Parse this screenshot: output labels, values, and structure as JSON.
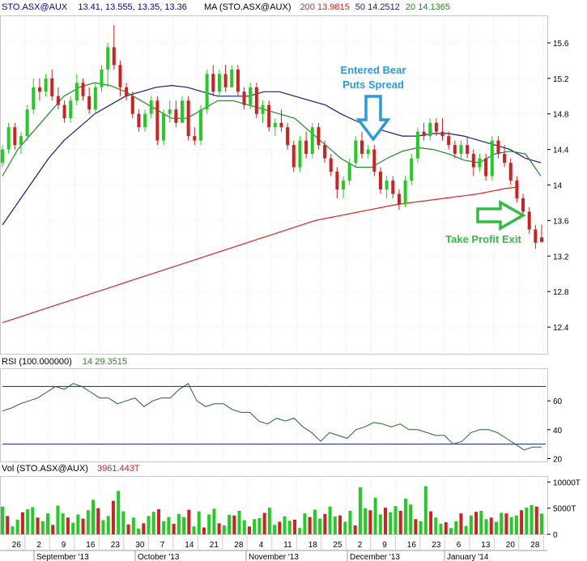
{
  "header": {
    "symbol": "STO.ASX@AUX",
    "ohlc": "13.41, 13.555, 13.35, 13.36",
    "ma_label": "MA (STO.ASX@AUX)",
    "ma200": "200 13.9815",
    "ma50": "50 14.2512",
    "ma20": "20 14.1365",
    "rsi_label": "RSI (100.000000)",
    "rsi_value": "14 29.3515",
    "vol_label": "Vol (STO.ASX@AUX)",
    "vol_value": "3961.443T"
  },
  "annotations": {
    "entry_line1": "Entered Bear",
    "entry_line2": "Puts Spread",
    "exit": "Take Profit Exit"
  },
  "colors": {
    "up": "#22cc22",
    "down": "#cc2222",
    "ma200": "#dd2222",
    "ma50": "#1a1a88",
    "ma20": "#228822",
    "annotation_blue": "#2a9bd8",
    "annotation_green": "#33bb44",
    "rsi_line": "#226622"
  },
  "chart_data": {
    "type": "candlestick",
    "price_axis": {
      "ticks": [
        15.6,
        15.2,
        14.8,
        14.4,
        14,
        13.6,
        13.2,
        12.8,
        12.4
      ],
      "ylim": [
        12.1,
        15.9
      ]
    },
    "rsi_axis": {
      "ticks": [
        60,
        40,
        20
      ],
      "overbought": 70,
      "oversold": 30,
      "ylim": [
        18,
        82
      ]
    },
    "volume_axis": {
      "ticks": [
        "10000T",
        "5000T",
        "0"
      ],
      "max": 11000
    },
    "x_ticks": [
      "26",
      "2",
      "9",
      "16",
      "23",
      "30",
      "7",
      "14",
      "21",
      "28",
      "4",
      "11",
      "18",
      "25",
      "2",
      "9",
      "16",
      "23",
      "6",
      "13",
      "20",
      "28"
    ],
    "months": [
      "September '13",
      "October '13",
      "November '13",
      "December '13",
      "January '14"
    ],
    "candles": [
      {
        "o": 14.25,
        "h": 14.45,
        "l": 14.2,
        "c": 14.4
      },
      {
        "o": 14.4,
        "h": 14.7,
        "l": 14.35,
        "c": 14.65
      },
      {
        "o": 14.65,
        "h": 14.7,
        "l": 14.4,
        "c": 14.45
      },
      {
        "o": 14.45,
        "h": 14.6,
        "l": 14.35,
        "c": 14.55
      },
      {
        "o": 14.55,
        "h": 14.9,
        "l": 14.5,
        "c": 14.85
      },
      {
        "o": 14.85,
        "h": 15.2,
        "l": 14.8,
        "c": 15.1
      },
      {
        "o": 15.1,
        "h": 15.2,
        "l": 14.95,
        "c": 15.05
      },
      {
        "o": 15.05,
        "h": 15.25,
        "l": 15.0,
        "c": 15.2
      },
      {
        "o": 15.2,
        "h": 15.3,
        "l": 14.95,
        "c": 15.0
      },
      {
        "o": 15.0,
        "h": 15.1,
        "l": 14.85,
        "c": 14.9
      },
      {
        "o": 14.9,
        "h": 14.95,
        "l": 14.7,
        "c": 14.75
      },
      {
        "o": 14.75,
        "h": 15.0,
        "l": 14.7,
        "c": 14.95
      },
      {
        "o": 14.95,
        "h": 15.25,
        "l": 14.9,
        "c": 15.15
      },
      {
        "o": 15.15,
        "h": 15.2,
        "l": 14.95,
        "c": 15.0
      },
      {
        "o": 15.0,
        "h": 15.1,
        "l": 14.8,
        "c": 14.85
      },
      {
        "o": 14.85,
        "h": 15.15,
        "l": 14.8,
        "c": 15.1
      },
      {
        "o": 15.1,
        "h": 15.35,
        "l": 15.05,
        "c": 15.3
      },
      {
        "o": 15.3,
        "h": 15.6,
        "l": 15.1,
        "c": 15.55
      },
      {
        "o": 15.55,
        "h": 15.8,
        "l": 15.3,
        "c": 15.35
      },
      {
        "o": 15.35,
        "h": 15.4,
        "l": 15.0,
        "c": 15.1
      },
      {
        "o": 15.1,
        "h": 15.15,
        "l": 14.95,
        "c": 15.0
      },
      {
        "o": 15.0,
        "h": 15.05,
        "l": 14.75,
        "c": 14.8
      },
      {
        "o": 14.8,
        "h": 14.85,
        "l": 14.6,
        "c": 14.65
      },
      {
        "o": 14.65,
        "h": 14.85,
        "l": 14.6,
        "c": 14.8
      },
      {
        "o": 14.8,
        "h": 15.0,
        "l": 14.75,
        "c": 14.95
      },
      {
        "o": 14.95,
        "h": 15.0,
        "l": 14.45,
        "c": 14.5
      },
      {
        "o": 14.5,
        "h": 14.85,
        "l": 14.45,
        "c": 14.8
      },
      {
        "o": 14.8,
        "h": 14.95,
        "l": 14.7,
        "c": 14.85
      },
      {
        "o": 14.85,
        "h": 14.95,
        "l": 14.65,
        "c": 14.7
      },
      {
        "o": 14.7,
        "h": 15.0,
        "l": 14.7,
        "c": 14.95
      },
      {
        "o": 14.95,
        "h": 15.0,
        "l": 14.5,
        "c": 14.55
      },
      {
        "o": 14.55,
        "h": 14.65,
        "l": 14.45,
        "c": 14.5
      },
      {
        "o": 14.5,
        "h": 14.9,
        "l": 14.45,
        "c": 14.85
      },
      {
        "o": 14.85,
        "h": 15.3,
        "l": 14.8,
        "c": 15.25
      },
      {
        "o": 15.25,
        "h": 15.35,
        "l": 15.0,
        "c": 15.05
      },
      {
        "o": 15.05,
        "h": 15.3,
        "l": 15.0,
        "c": 15.25
      },
      {
        "o": 15.25,
        "h": 15.35,
        "l": 15.05,
        "c": 15.1
      },
      {
        "o": 15.1,
        "h": 15.35,
        "l": 15.1,
        "c": 15.3
      },
      {
        "o": 15.3,
        "h": 15.35,
        "l": 15.0,
        "c": 15.05
      },
      {
        "o": 15.05,
        "h": 15.1,
        "l": 14.85,
        "c": 14.9
      },
      {
        "o": 14.9,
        "h": 15.15,
        "l": 14.85,
        "c": 15.1
      },
      {
        "o": 15.1,
        "h": 15.15,
        "l": 14.75,
        "c": 14.8
      },
      {
        "o": 14.8,
        "h": 14.95,
        "l": 14.7,
        "c": 14.9
      },
      {
        "o": 14.9,
        "h": 14.95,
        "l": 14.6,
        "c": 14.65
      },
      {
        "o": 14.65,
        "h": 14.75,
        "l": 14.55,
        "c": 14.7
      },
      {
        "o": 14.7,
        "h": 14.85,
        "l": 14.6,
        "c": 14.65
      },
      {
        "o": 14.65,
        "h": 14.7,
        "l": 14.4,
        "c": 14.45
      },
      {
        "o": 14.45,
        "h": 14.5,
        "l": 14.15,
        "c": 14.2
      },
      {
        "o": 14.2,
        "h": 14.55,
        "l": 14.15,
        "c": 14.5
      },
      {
        "o": 14.5,
        "h": 14.6,
        "l": 14.3,
        "c": 14.35
      },
      {
        "o": 14.35,
        "h": 14.7,
        "l": 14.3,
        "c": 14.65
      },
      {
        "o": 14.65,
        "h": 14.7,
        "l": 14.4,
        "c": 14.45
      },
      {
        "o": 14.45,
        "h": 14.5,
        "l": 14.25,
        "c": 14.3
      },
      {
        "o": 14.3,
        "h": 14.35,
        "l": 14.1,
        "c": 14.15
      },
      {
        "o": 14.15,
        "h": 14.2,
        "l": 13.85,
        "c": 13.95
      },
      {
        "o": 13.95,
        "h": 14.1,
        "l": 13.85,
        "c": 14.05
      },
      {
        "o": 14.05,
        "h": 14.3,
        "l": 14.0,
        "c": 14.25
      },
      {
        "o": 14.25,
        "h": 14.55,
        "l": 14.2,
        "c": 14.5
      },
      {
        "o": 14.5,
        "h": 14.6,
        "l": 14.3,
        "c": 14.35
      },
      {
        "o": 14.35,
        "h": 14.45,
        "l": 14.3,
        "c": 14.4
      },
      {
        "o": 14.4,
        "h": 14.45,
        "l": 14.1,
        "c": 14.15
      },
      {
        "o": 14.15,
        "h": 14.2,
        "l": 13.9,
        "c": 13.95
      },
      {
        "o": 13.95,
        "h": 14.1,
        "l": 13.85,
        "c": 14.05
      },
      {
        "o": 14.05,
        "h": 14.1,
        "l": 13.85,
        "c": 13.9
      },
      {
        "o": 13.9,
        "h": 13.95,
        "l": 13.72,
        "c": 13.78
      },
      {
        "o": 13.78,
        "h": 14.1,
        "l": 13.75,
        "c": 14.05
      },
      {
        "o": 14.05,
        "h": 14.35,
        "l": 14.0,
        "c": 14.3
      },
      {
        "o": 14.3,
        "h": 14.65,
        "l": 14.25,
        "c": 14.6
      },
      {
        "o": 14.6,
        "h": 14.7,
        "l": 14.5,
        "c": 14.55
      },
      {
        "o": 14.55,
        "h": 14.75,
        "l": 14.5,
        "c": 14.7
      },
      {
        "o": 14.7,
        "h": 14.75,
        "l": 14.55,
        "c": 14.6
      },
      {
        "o": 14.6,
        "h": 14.75,
        "l": 14.5,
        "c": 14.55
      },
      {
        "o": 14.55,
        "h": 14.6,
        "l": 14.4,
        "c": 14.45
      },
      {
        "o": 14.45,
        "h": 14.5,
        "l": 14.3,
        "c": 14.35
      },
      {
        "o": 14.35,
        "h": 14.5,
        "l": 14.3,
        "c": 14.45
      },
      {
        "o": 14.45,
        "h": 14.55,
        "l": 14.3,
        "c": 14.35
      },
      {
        "o": 14.35,
        "h": 14.4,
        "l": 14.1,
        "c": 14.2
      },
      {
        "o": 14.2,
        "h": 14.35,
        "l": 14.15,
        "c": 14.3
      },
      {
        "o": 14.3,
        "h": 14.35,
        "l": 14.05,
        "c": 14.1
      },
      {
        "o": 14.1,
        "h": 14.55,
        "l": 14.05,
        "c": 14.5
      },
      {
        "o": 14.5,
        "h": 14.55,
        "l": 14.3,
        "c": 14.35
      },
      {
        "o": 14.35,
        "h": 14.45,
        "l": 14.2,
        "c": 14.25
      },
      {
        "o": 14.25,
        "h": 14.3,
        "l": 14.0,
        "c": 14.05
      },
      {
        "o": 14.05,
        "h": 14.1,
        "l": 13.8,
        "c": 13.85
      },
      {
        "o": 13.85,
        "h": 13.9,
        "l": 13.65,
        "c": 13.7
      },
      {
        "o": 13.7,
        "h": 13.75,
        "l": 13.45,
        "c": 13.5
      },
      {
        "o": 13.5,
        "h": 13.55,
        "l": 13.28,
        "c": 13.35
      },
      {
        "o": 13.41,
        "h": 13.555,
        "l": 13.35,
        "c": 13.36
      }
    ],
    "ma200": [
      12.45,
      12.5,
      12.55,
      12.6,
      12.65,
      12.7,
      12.75,
      12.8,
      12.85,
      12.9,
      12.95,
      13.0,
      13.05,
      13.1,
      13.15,
      13.2,
      13.25,
      13.3,
      13.35,
      13.4,
      13.45,
      13.5,
      13.55,
      13.6,
      13.63,
      13.66,
      13.69,
      13.72,
      13.75,
      13.78,
      13.8,
      13.82,
      13.84,
      13.86,
      13.88,
      13.9,
      13.93,
      13.96,
      13.98
    ],
    "ma50": [
      13.55,
      13.8,
      14.05,
      14.3,
      14.5,
      14.65,
      14.8,
      14.9,
      15.0,
      15.05,
      15.1,
      15.12,
      15.1,
      15.05,
      15.0,
      15.0,
      15.0,
      15.05,
      15.05,
      15.0,
      14.95,
      14.9,
      14.8,
      14.72,
      14.65,
      14.6,
      14.55,
      14.55,
      14.58,
      14.58,
      14.55,
      14.5,
      14.45,
      14.4,
      14.3,
      14.25
    ],
    "ma20": [
      14.1,
      14.4,
      14.6,
      14.8,
      15.0,
      15.1,
      15.15,
      15.12,
      15.05,
      14.95,
      14.85,
      14.75,
      14.75,
      14.85,
      14.95,
      14.95,
      14.9,
      14.85,
      14.8,
      14.75,
      14.6,
      14.45,
      14.3,
      14.2,
      14.2,
      14.3,
      14.38,
      14.42,
      14.4,
      14.35,
      14.28,
      14.25,
      14.35,
      14.38,
      14.35,
      14.1
    ],
    "rsi": [
      53,
      55,
      58,
      60,
      62,
      66,
      70,
      68,
      72,
      70,
      66,
      62,
      62,
      58,
      60,
      62,
      56,
      60,
      62,
      62,
      68,
      72,
      60,
      56,
      58,
      58,
      54,
      52,
      52,
      46,
      44,
      48,
      46,
      48,
      42,
      38,
      32,
      38,
      36,
      34,
      40,
      42,
      45,
      44,
      42,
      44,
      40,
      40,
      38,
      36,
      36,
      30,
      32,
      38,
      40,
      40,
      38,
      34,
      30,
      26,
      28,
      28
    ],
    "volume": [
      5300,
      3500,
      1500,
      2800,
      4200,
      4800,
      5200,
      3200,
      2500,
      4000,
      1800,
      5500,
      4000,
      3200,
      2200,
      3800,
      3000,
      4600,
      6600,
      5000,
      2700,
      3500,
      6400,
      8300,
      4400,
      1900,
      3200,
      1100,
      2100,
      3500,
      4300,
      4800,
      2500,
      3300,
      2000,
      3900,
      3300,
      4700,
      1500,
      4400,
      1300,
      3800,
      4900,
      2100,
      1700,
      3700,
      3600,
      4500,
      2700,
      1500,
      2900,
      3100,
      4100,
      5100,
      1800,
      2400,
      3400,
      2600,
      2800,
      1200,
      4000,
      3300,
      4700,
      3000,
      3900,
      5300,
      3400,
      3600,
      2400,
      4500,
      1700,
      9000,
      5000,
      4600,
      7000,
      3800,
      5100,
      4200,
      5400,
      4500,
      6800,
      5700,
      2900,
      2500,
      9200,
      4400,
      3200,
      2000,
      2300,
      1200,
      2500,
      4000,
      1600,
      3600,
      4300,
      4500,
      2900,
      3200,
      2400,
      4100,
      4000,
      3300,
      3600,
      4600,
      5100,
      5600,
      5300,
      3961
    ]
  }
}
